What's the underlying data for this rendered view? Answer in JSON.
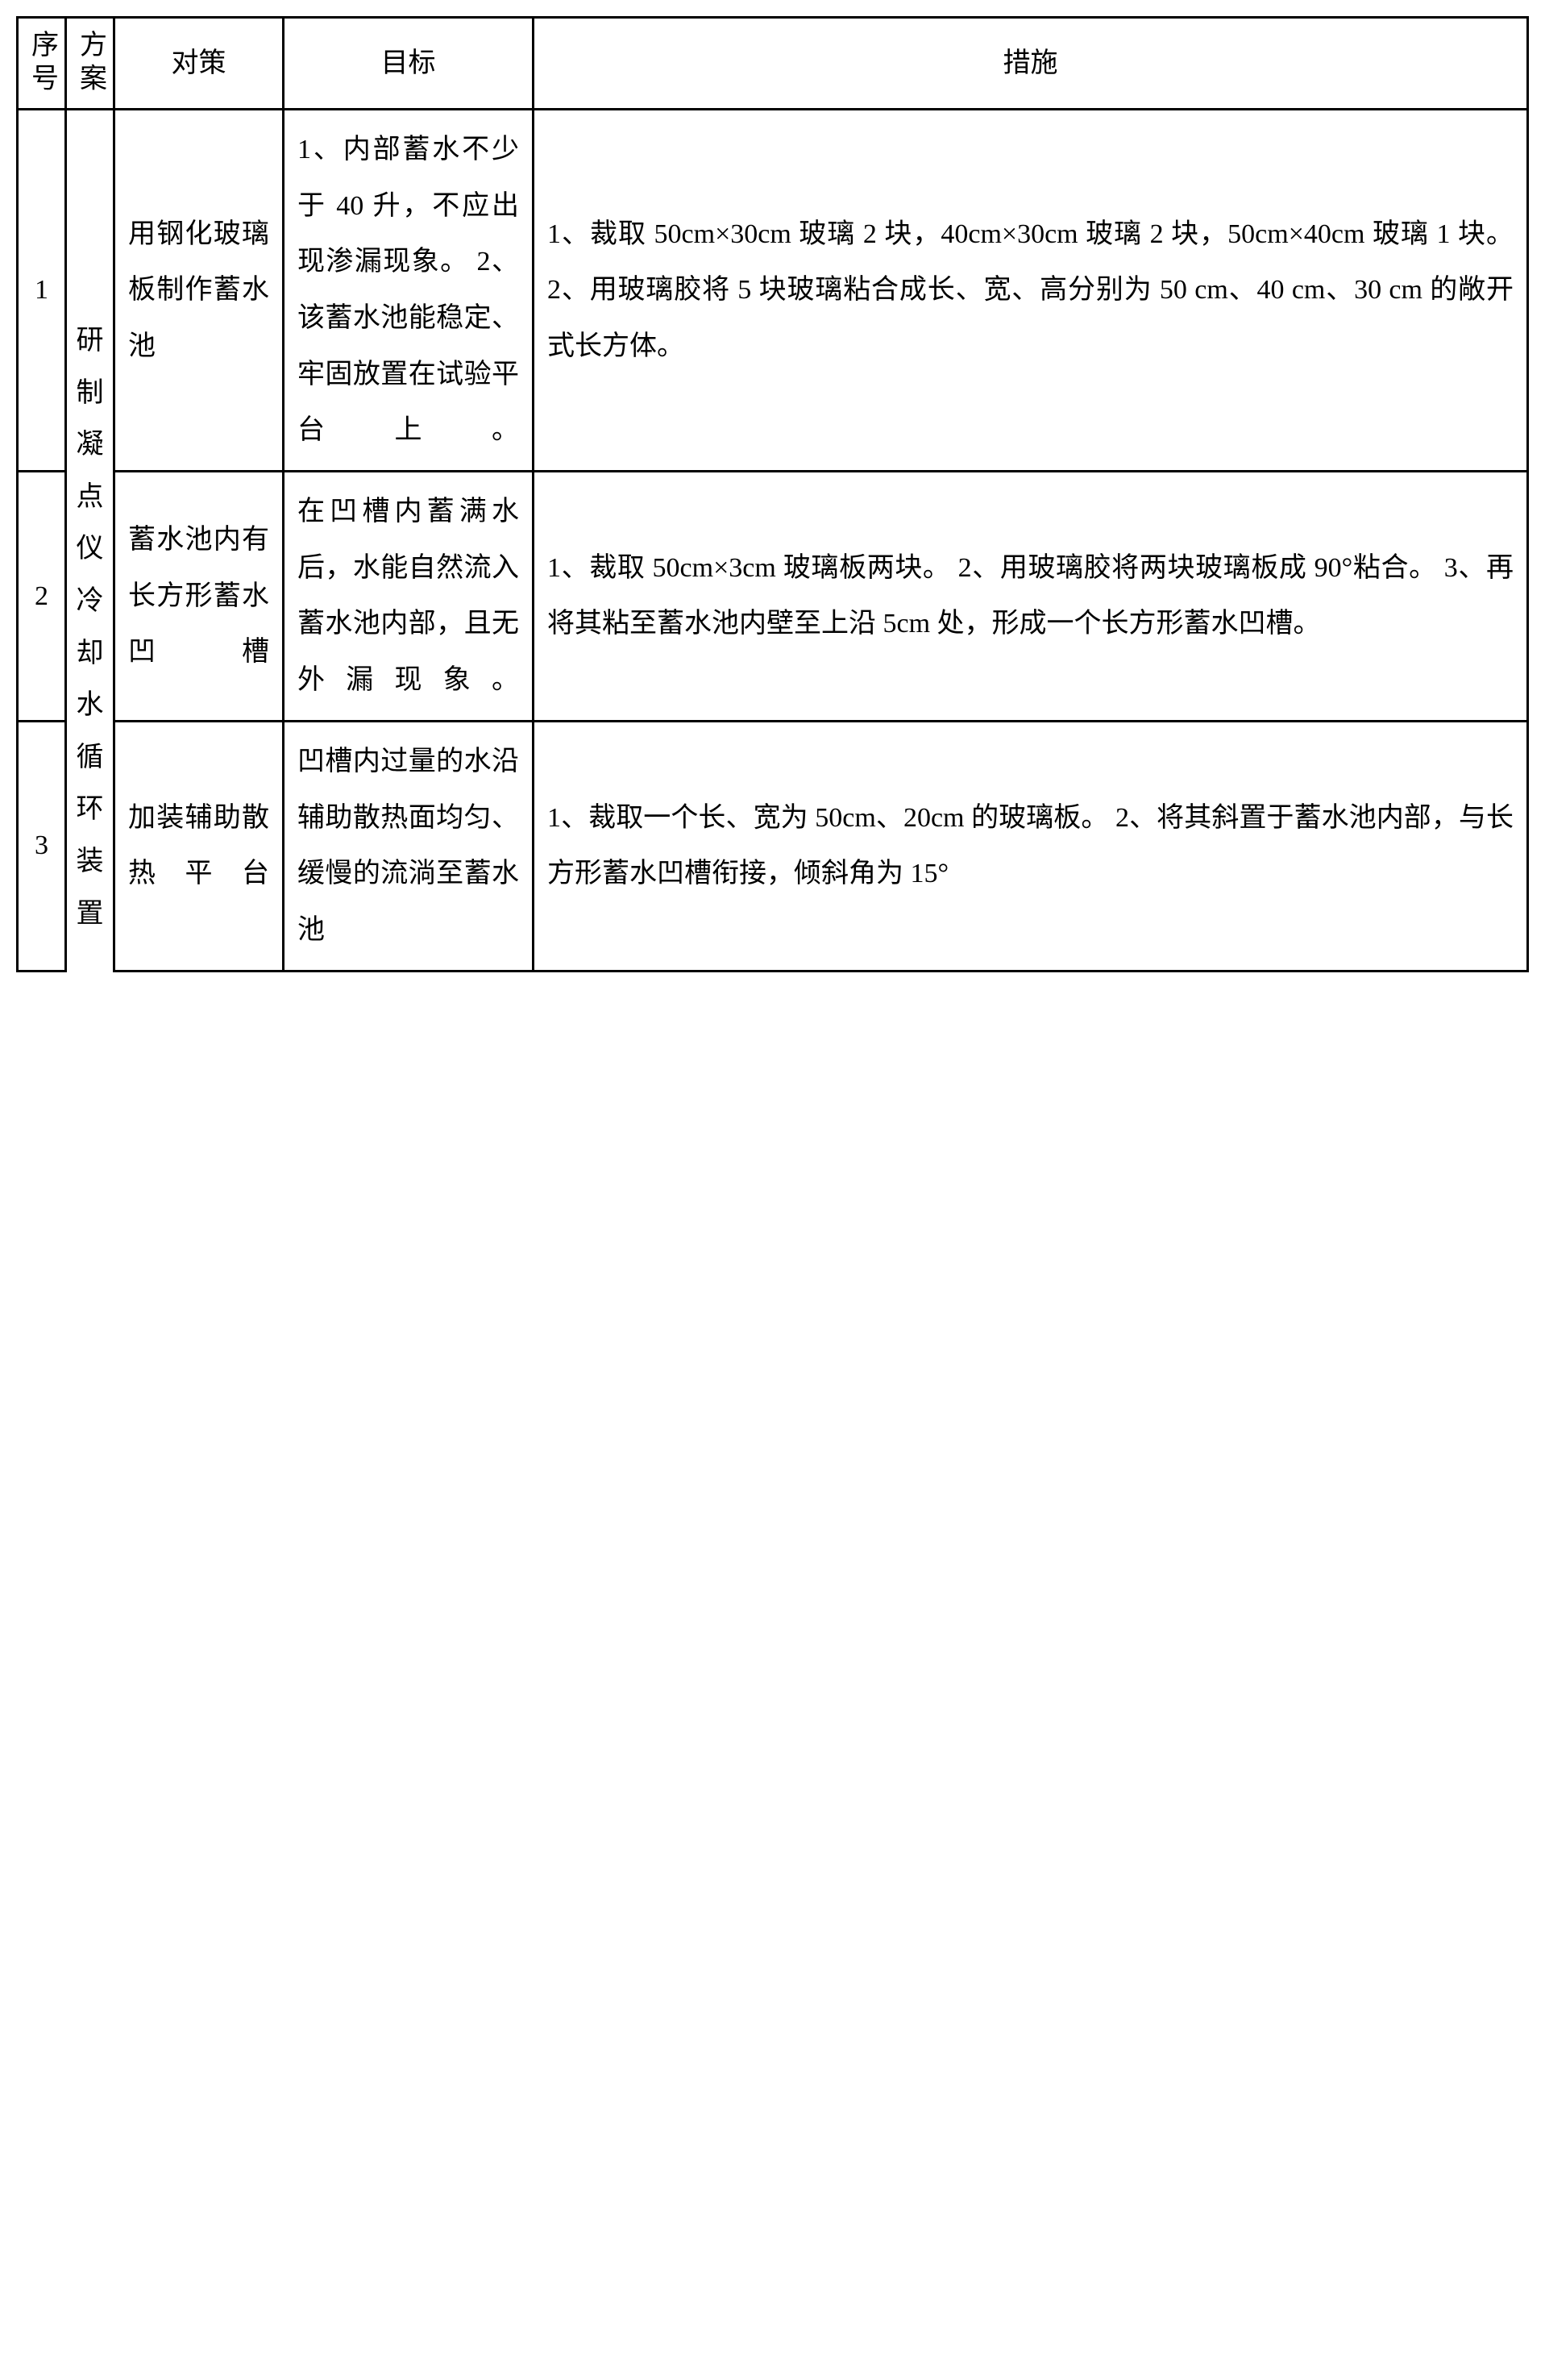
{
  "headers": {
    "seq": "序号",
    "plan": "方案",
    "strategy": "对策",
    "goal": "目标",
    "measure": "措施"
  },
  "plan_label": "研制凝点仪冷却水循环装置",
  "rows": [
    {
      "seq": "1",
      "strategy": "用钢化玻璃板制作蓄水池",
      "goal": "1、内部蓄水不少于 40 升，不应出现渗漏现象。\n2、该蓄水池能稳定、牢固放置在试验平台上。",
      "measure": "1、裁取 50cm×30cm 玻璃 2 块，40cm×30cm 玻璃 2 块，50cm×40cm 玻璃 1 块。\n2、用玻璃胶将 5 块玻璃粘合成长、宽、高分别为 50 cm、40 cm、30 cm 的敞开式长方体。"
    },
    {
      "seq": "2",
      "strategy": "蓄水池内有长方形蓄水凹槽",
      "goal": "在凹槽内蓄满水后，水能自然流入蓄水池内部，且无外漏现象。",
      "measure": "1、裁取 50cm×3cm 玻璃板两块。\n2、用玻璃胶将两块玻璃板成 90°粘合。\n3、再将其粘至蓄水池内壁至上沿 5cm 处，形成一个长方形蓄水凹槽。"
    },
    {
      "seq": "3",
      "strategy": "加装辅助散热平台",
      "goal": "凹槽内过量的水沿辅助散热面均匀、缓慢的流淌至蓄水池",
      "measure": "1、裁取一个长、宽为 50cm、20cm 的玻璃板。\n2、将其斜置于蓄水池内部，与长方形蓄水凹槽衔接，倾斜角为 15°"
    }
  ],
  "styles": {
    "border_color": "#000000",
    "text_color": "#000000",
    "background_color": "#ffffff",
    "font_size_pt": 34,
    "line_height": 2.05
  }
}
